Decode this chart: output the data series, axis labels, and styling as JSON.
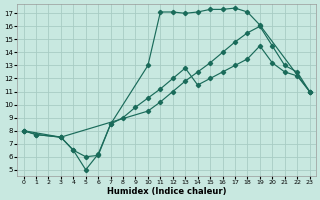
{
  "xlabel": "Humidex (Indice chaleur)",
  "bg_color": "#c8e8e0",
  "grid_color": "#a8ccc4",
  "line_color": "#1a6b5a",
  "xlim": [
    -0.5,
    23.5
  ],
  "ylim": [
    4.5,
    17.7
  ],
  "xticks": [
    0,
    1,
    2,
    3,
    4,
    5,
    6,
    7,
    8,
    9,
    10,
    11,
    12,
    13,
    14,
    15,
    16,
    17,
    18,
    19,
    20,
    21,
    22,
    23
  ],
  "yticks": [
    5,
    6,
    7,
    8,
    9,
    10,
    11,
    12,
    13,
    14,
    15,
    16,
    17
  ],
  "line_top_x": [
    0,
    3,
    4,
    5,
    6,
    7,
    10,
    11,
    12,
    13,
    14,
    15,
    16,
    17,
    18,
    19,
    23
  ],
  "line_top_y": [
    8,
    7.5,
    6.5,
    6.0,
    6.1,
    8.5,
    13.0,
    17.1,
    17.1,
    17.0,
    17.1,
    17.3,
    17.3,
    17.4,
    17.1,
    16.1,
    11.0
  ],
  "line_mid_x": [
    0,
    1,
    3,
    10,
    11,
    12,
    13,
    14,
    15,
    16,
    17,
    18,
    19,
    20,
    21,
    22,
    23
  ],
  "line_mid_y": [
    8,
    7.7,
    7.5,
    9.5,
    10.2,
    11.0,
    11.8,
    12.5,
    13.2,
    14.0,
    14.8,
    15.5,
    16.0,
    14.5,
    13.0,
    12.5,
    11.0
  ],
  "line_bot_x": [
    0,
    1,
    3,
    4,
    5,
    6,
    7,
    8,
    9,
    10,
    11,
    12,
    13,
    14,
    15,
    16,
    17,
    18,
    19,
    20,
    21,
    22,
    23
  ],
  "line_bot_y": [
    8,
    7.7,
    7.5,
    6.5,
    5.0,
    6.2,
    8.5,
    9.0,
    9.8,
    10.5,
    11.2,
    12.0,
    12.8,
    11.5,
    12.0,
    12.5,
    13.0,
    13.5,
    14.5,
    13.2,
    12.5,
    12.2,
    11.0
  ]
}
